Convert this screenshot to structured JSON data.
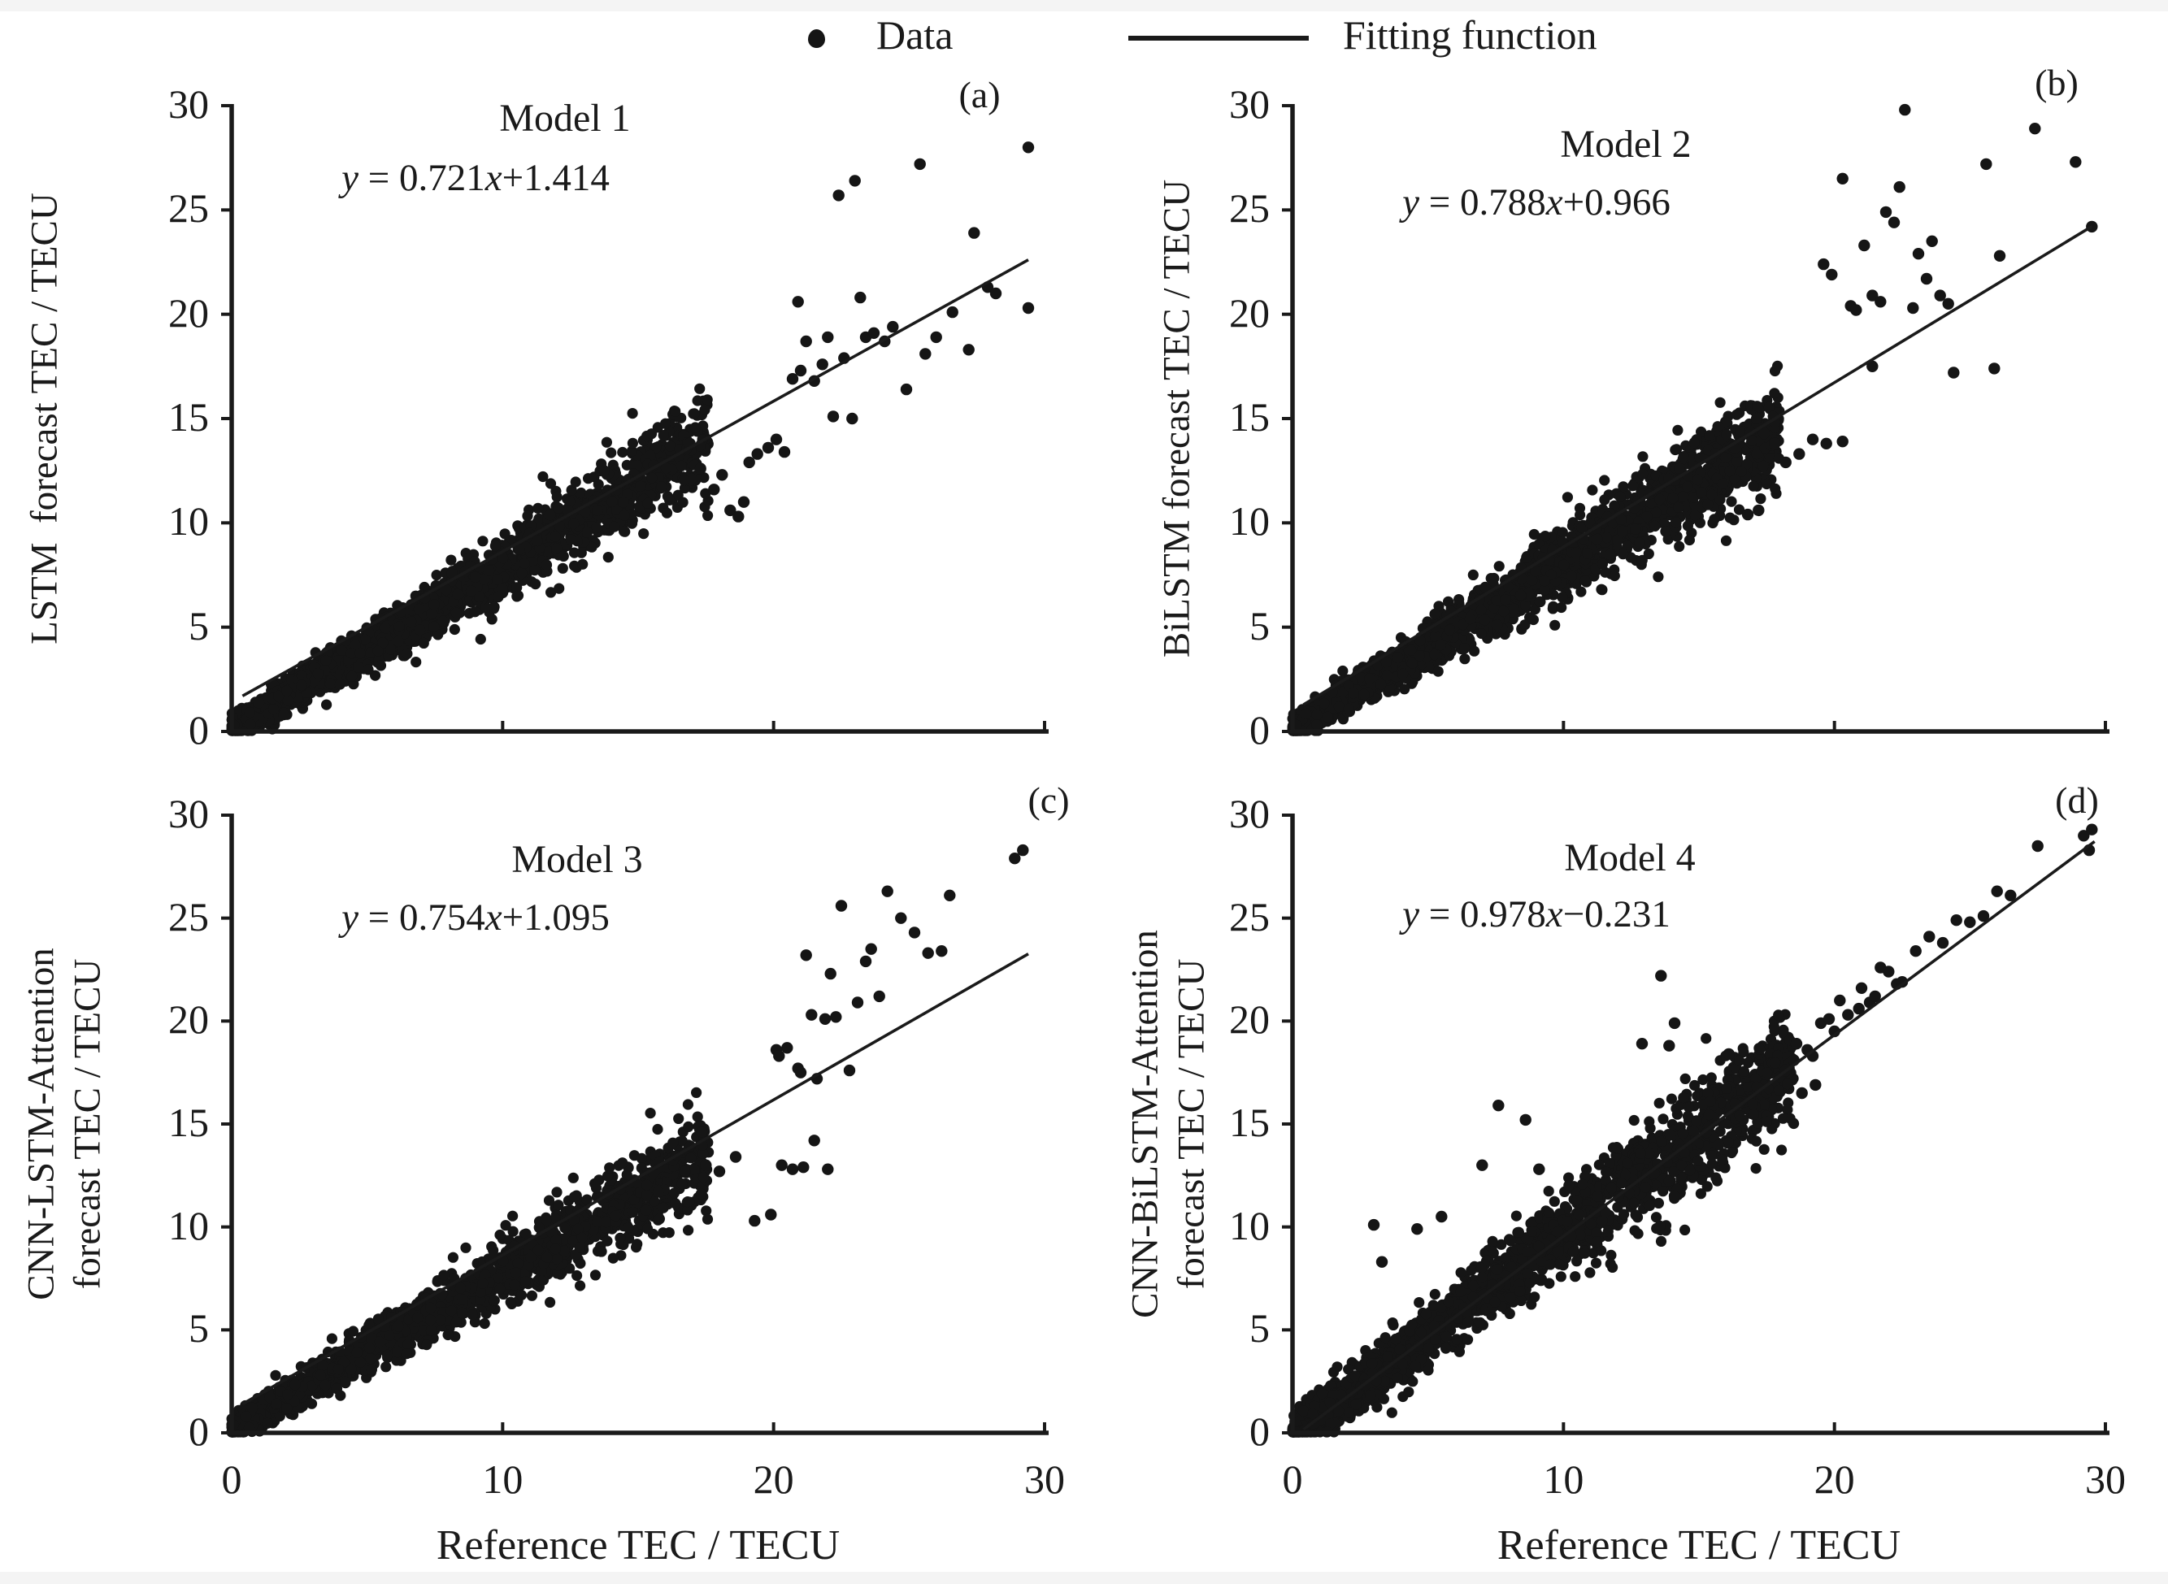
{
  "colors": {
    "ink": "#1a1a1a",
    "dot": "#151515",
    "background": "#ffffff",
    "edge_strip": "#f4f4f4"
  },
  "legend": {
    "data_label": "Data",
    "fit_label": "Fitting function",
    "position": "top"
  },
  "xlabel": "Reference TEC / TECU",
  "chart_data": [
    {
      "panel": "a",
      "letter": "(a)",
      "type": "scatter",
      "title": "Model 1",
      "equation_text": "y = 0.721x+1.414",
      "equation": {
        "lhs": "y",
        "rel": " = ",
        "coef": "0.721",
        "var": "x",
        "off": "+1.414"
      },
      "ylabel": "LSTM  forecast TEC / TECU",
      "xlabel_visible": false,
      "xlim": [
        0,
        30
      ],
      "ylim": [
        0,
        30
      ],
      "x_ticks": [
        0,
        10,
        20,
        30
      ],
      "y_ticks": [
        0,
        5,
        10,
        15,
        20,
        25,
        30
      ],
      "fit": {
        "slope": 0.721,
        "intercept": 1.414,
        "x_start": 0.4,
        "x_end": 29.4
      },
      "cloud": {
        "seed": 11,
        "n": 2000,
        "x_max": 17.6,
        "x_pow": 1.4,
        "slope": 0.78,
        "intercept": 0.12,
        "noise_base": 0.3,
        "noise_slope": 0.05
      },
      "extra_points": [
        [
          16.9,
          13.8
        ],
        [
          17.3,
          12.6
        ],
        [
          17.8,
          11.6
        ],
        [
          18.1,
          12.3
        ],
        [
          18.4,
          10.6
        ],
        [
          18.7,
          10.3
        ],
        [
          18.9,
          11.0
        ],
        [
          19.1,
          12.9
        ],
        [
          19.4,
          13.3
        ],
        [
          19.8,
          13.6
        ],
        [
          20.1,
          14.0
        ],
        [
          20.4,
          13.4
        ],
        [
          20.7,
          16.9
        ],
        [
          21.0,
          17.3
        ],
        [
          21.2,
          18.7
        ],
        [
          21.5,
          16.8
        ],
        [
          21.8,
          17.6
        ],
        [
          22.0,
          18.9
        ],
        [
          22.2,
          15.1
        ],
        [
          22.6,
          17.9
        ],
        [
          22.9,
          15.0
        ],
        [
          23.2,
          20.8
        ],
        [
          23.4,
          18.9
        ],
        [
          23.7,
          19.1
        ],
        [
          24.1,
          18.7
        ],
        [
          24.4,
          19.4
        ],
        [
          24.9,
          16.4
        ],
        [
          25.6,
          18.1
        ],
        [
          26.0,
          18.9
        ],
        [
          26.6,
          20.1
        ],
        [
          27.2,
          18.3
        ],
        [
          27.9,
          21.3
        ],
        [
          28.2,
          21.0
        ],
        [
          29.4,
          20.3
        ],
        [
          20.9,
          20.6
        ],
        [
          22.4,
          25.7
        ],
        [
          23.0,
          26.4
        ],
        [
          25.4,
          27.2
        ],
        [
          27.4,
          23.9
        ],
        [
          29.4,
          28.0
        ]
      ]
    },
    {
      "panel": "b",
      "letter": "(b)",
      "type": "scatter",
      "title": "Model 2",
      "equation_text": "y = 0.788x+0.966",
      "equation": {
        "lhs": "y",
        "rel": " = ",
        "coef": "0.788",
        "var": "x",
        "off": "+0.966"
      },
      "ylabel": "BiLSTM forecast TEC / TECU",
      "xlabel_visible": false,
      "xlim": [
        0,
        30
      ],
      "ylim": [
        0,
        30
      ],
      "x_ticks": [
        0,
        10,
        20,
        30
      ],
      "y_ticks": [
        0,
        5,
        10,
        15,
        20,
        25,
        30
      ],
      "fit": {
        "slope": 0.788,
        "intercept": 0.966,
        "x_start": 0.4,
        "x_end": 29.5
      },
      "cloud": {
        "seed": 22,
        "n": 2050,
        "x_max": 18.0,
        "x_pow": 1.4,
        "slope": 0.8,
        "intercept": 0.1,
        "noise_base": 0.3,
        "noise_slope": 0.055
      },
      "extra_points": [
        [
          16.8,
          10.4
        ],
        [
          17.2,
          10.6
        ],
        [
          17.4,
          14.3
        ],
        [
          17.8,
          13.8
        ],
        [
          18.2,
          12.9
        ],
        [
          18.7,
          13.3
        ],
        [
          19.2,
          14.0
        ],
        [
          19.7,
          13.8
        ],
        [
          20.3,
          13.9
        ],
        [
          21.4,
          17.5
        ],
        [
          24.4,
          17.2
        ],
        [
          25.9,
          17.4
        ],
        [
          19.6,
          22.4
        ],
        [
          19.9,
          21.9
        ],
        [
          20.3,
          26.5
        ],
        [
          20.6,
          20.4
        ],
        [
          20.8,
          20.2
        ],
        [
          21.1,
          23.3
        ],
        [
          21.4,
          20.9
        ],
        [
          21.7,
          20.6
        ],
        [
          21.9,
          24.9
        ],
        [
          22.2,
          24.4
        ],
        [
          22.4,
          26.1
        ],
        [
          22.6,
          29.8
        ],
        [
          22.9,
          20.3
        ],
        [
          23.1,
          22.9
        ],
        [
          23.4,
          21.7
        ],
        [
          23.6,
          23.5
        ],
        [
          23.9,
          20.9
        ],
        [
          24.2,
          20.5
        ],
        [
          25.6,
          27.2
        ],
        [
          26.1,
          22.8
        ],
        [
          27.4,
          28.9
        ],
        [
          28.9,
          27.3
        ],
        [
          29.5,
          24.2
        ]
      ]
    },
    {
      "panel": "c",
      "letter": "(c)",
      "type": "scatter",
      "title": "Model 3",
      "equation_text": "y = 0.754x+1.095",
      "equation": {
        "lhs": "y",
        "rel": " = ",
        "coef": "0.754",
        "var": "x",
        "off": "+1.095"
      },
      "ylabel": "CNN-LSTM-Attention\nforecast TEC / TECU",
      "xlabel_visible": true,
      "xlim": [
        0,
        30
      ],
      "ylim": [
        0,
        30
      ],
      "x_ticks": [
        0,
        10,
        20,
        30
      ],
      "y_ticks": [
        0,
        5,
        10,
        15,
        20,
        25,
        30
      ],
      "fit": {
        "slope": 0.754,
        "intercept": 1.095,
        "x_start": 0.4,
        "x_end": 29.4
      },
      "cloud": {
        "seed": 33,
        "n": 2000,
        "x_max": 17.6,
        "x_pow": 1.4,
        "slope": 0.75,
        "intercept": 0.2,
        "noise_base": 0.28,
        "noise_slope": 0.05
      },
      "extra_points": [
        [
          17.5,
          13.0
        ],
        [
          18.0,
          12.7
        ],
        [
          18.6,
          13.4
        ],
        [
          19.3,
          10.3
        ],
        [
          19.9,
          10.6
        ],
        [
          20.3,
          13.0
        ],
        [
          20.7,
          12.8
        ],
        [
          21.1,
          12.9
        ],
        [
          21.5,
          14.2
        ],
        [
          22.0,
          12.8
        ],
        [
          20.1,
          18.6
        ],
        [
          20.2,
          18.3
        ],
        [
          20.5,
          18.7
        ],
        [
          20.9,
          17.7
        ],
        [
          21.0,
          17.5
        ],
        [
          21.2,
          23.2
        ],
        [
          21.4,
          20.3
        ],
        [
          21.6,
          17.2
        ],
        [
          21.9,
          20.1
        ],
        [
          22.1,
          22.3
        ],
        [
          22.3,
          20.2
        ],
        [
          22.5,
          25.6
        ],
        [
          22.8,
          17.6
        ],
        [
          23.1,
          20.9
        ],
        [
          23.4,
          22.9
        ],
        [
          23.6,
          23.5
        ],
        [
          23.9,
          21.2
        ],
        [
          24.2,
          26.3
        ],
        [
          24.7,
          25.0
        ],
        [
          25.2,
          24.3
        ],
        [
          25.7,
          23.3
        ],
        [
          26.2,
          23.4
        ],
        [
          26.5,
          26.1
        ],
        [
          28.9,
          27.9
        ],
        [
          29.2,
          28.3
        ]
      ]
    },
    {
      "panel": "d",
      "letter": "(d)",
      "type": "scatter",
      "title": "Model 4",
      "equation_text": "y = 0.978x−0.231",
      "equation": {
        "lhs": "y",
        "rel": " = ",
        "coef": "0.978",
        "var": "x",
        "off": "−0.231"
      },
      "ylabel": "CNN-BiLSTM-Attention\nforecast TEC / TECU",
      "xlabel_visible": true,
      "xlim": [
        0,
        30
      ],
      "ylim": [
        0,
        30
      ],
      "x_ticks": [
        0,
        10,
        20,
        30
      ],
      "y_ticks": [
        0,
        5,
        10,
        15,
        20,
        25,
        30
      ],
      "fit": {
        "slope": 0.978,
        "intercept": -0.231,
        "x_start": 0.4,
        "x_end": 29.6
      },
      "cloud": {
        "seed": 44,
        "n": 2150,
        "x_max": 18.5,
        "x_pow": 1.35,
        "slope": 0.97,
        "intercept": -0.1,
        "noise_base": 0.42,
        "noise_slope": 0.062
      },
      "extra_points": [
        [
          18.2,
          17.6
        ],
        [
          18.5,
          18.1
        ],
        [
          18.6,
          18.9
        ],
        [
          18.8,
          16.5
        ],
        [
          19.0,
          18.6
        ],
        [
          19.2,
          18.3
        ],
        [
          19.3,
          16.9
        ],
        [
          19.5,
          19.9
        ],
        [
          19.8,
          20.1
        ],
        [
          20.0,
          19.5
        ],
        [
          20.2,
          21.0
        ],
        [
          20.5,
          20.3
        ],
        [
          20.9,
          20.6
        ],
        [
          21.0,
          21.6
        ],
        [
          21.3,
          20.9
        ],
        [
          21.5,
          21.2
        ],
        [
          21.7,
          22.6
        ],
        [
          22.0,
          22.4
        ],
        [
          22.3,
          21.8
        ],
        [
          22.5,
          21.9
        ],
        [
          23.0,
          23.4
        ],
        [
          23.5,
          24.1
        ],
        [
          24.0,
          23.8
        ],
        [
          24.5,
          24.9
        ],
        [
          25.0,
          24.8
        ],
        [
          25.5,
          25.1
        ],
        [
          26.0,
          26.3
        ],
        [
          26.5,
          26.1
        ],
        [
          27.5,
          28.5
        ],
        [
          29.2,
          29.0
        ],
        [
          29.4,
          28.3
        ],
        [
          29.5,
          29.3
        ],
        [
          3.0,
          10.1
        ],
        [
          3.3,
          8.3
        ],
        [
          4.6,
          9.9
        ],
        [
          5.5,
          10.5
        ],
        [
          7.0,
          13.0
        ],
        [
          7.6,
          15.9
        ],
        [
          8.6,
          15.2
        ],
        [
          9.1,
          12.8
        ],
        [
          12.9,
          18.9
        ],
        [
          13.6,
          22.2
        ],
        [
          13.9,
          18.8
        ],
        [
          14.1,
          19.9
        ],
        [
          16.1,
          18.4
        ]
      ]
    }
  ]
}
